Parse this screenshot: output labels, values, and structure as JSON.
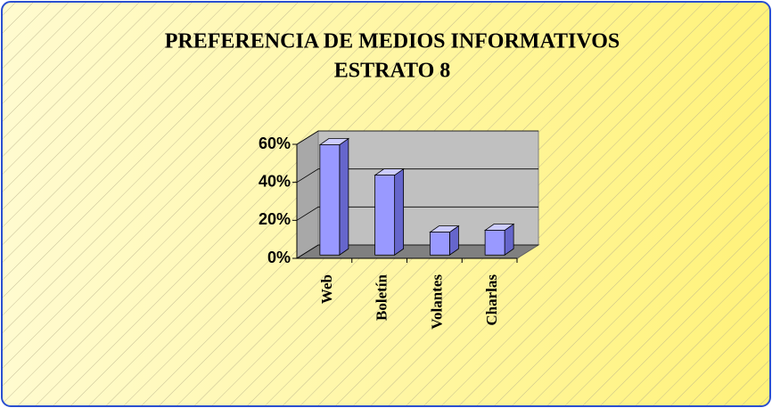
{
  "chart_data": {
    "type": "bar3d",
    "title": "PREFERENCIA DE MEDIOS INFORMATIVOS",
    "subtitle": "ESTRATO 8",
    "categories": [
      "Web",
      "Boletín",
      "Volantes",
      "Charlas"
    ],
    "values": [
      58,
      42,
      12,
      13
    ],
    "color": "#9999ff",
    "ylim": [
      0,
      60
    ],
    "yticks": [
      {
        "value": 0,
        "label": "0%"
      },
      {
        "value": 20,
        "label": "20%"
      },
      {
        "value": 40,
        "label": "40%"
      },
      {
        "value": 60,
        "label": "60%"
      }
    ],
    "grid": true
  }
}
